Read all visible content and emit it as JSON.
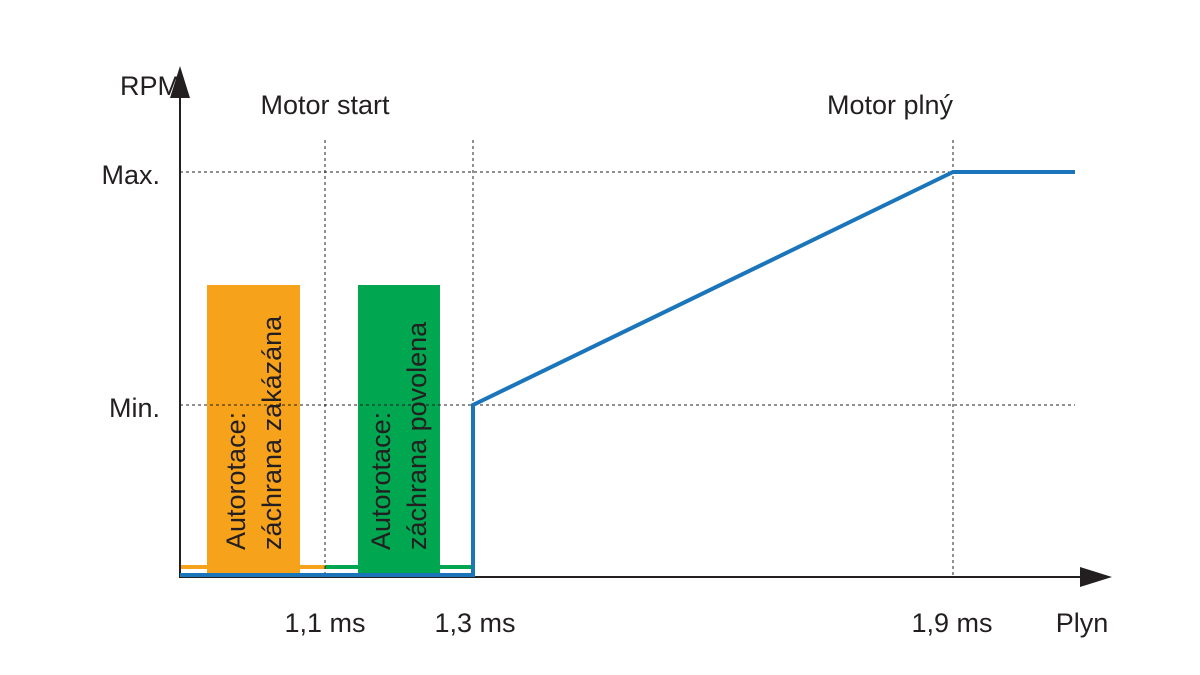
{
  "axes": {
    "y_label": "RPM",
    "x_label": "Plyn"
  },
  "zones": [
    {
      "label": "Motor start"
    },
    {
      "label": "Motor plný"
    }
  ],
  "y_levels": [
    "Max.",
    "Min."
  ],
  "x_marks": [
    "1,1 ms",
    "1,3 ms",
    "1,9 ms"
  ],
  "boxes": [
    {
      "lines": [
        "Autorotace:",
        "záchrana zakázána"
      ]
    },
    {
      "lines": [
        "Autorotace:",
        "záchrana povolena"
      ]
    }
  ]
}
